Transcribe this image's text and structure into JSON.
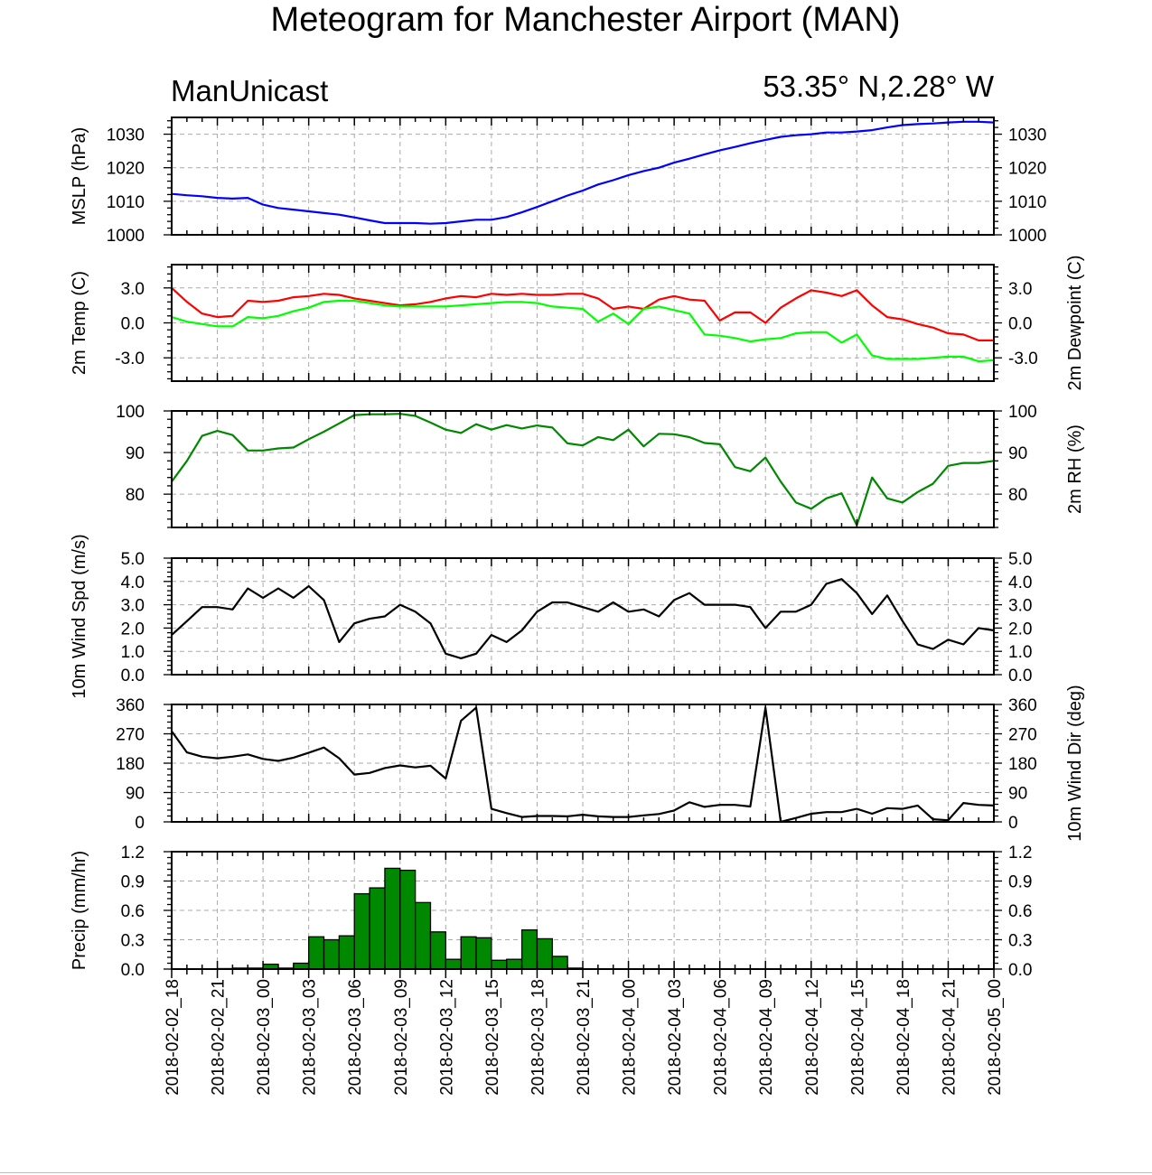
{
  "header": {
    "title": "Meteogram for Manchester Airport (MAN)",
    "left_label": "ManUnicast",
    "right_label": "53.35° N,2.28° W"
  },
  "colors": {
    "mslp": "#0000ff",
    "temp": "#ff0000",
    "dewpoint": "#00ff00",
    "rh": "#008800",
    "wind": "#000000",
    "precip_fill": "#008800",
    "grid": "#aaaaaa"
  },
  "chart_data": {
    "type": "line",
    "grid": true,
    "x_tick_labels": [
      "2018-02-02_18",
      "2018-02-02_21",
      "2018-02-03_00",
      "2018-02-03_03",
      "2018-02-03_06",
      "2018-02-03_09",
      "2018-02-03_12",
      "2018-02-03_15",
      "2018-02-03_18",
      "2018-02-03_21",
      "2018-02-04_00",
      "2018-02-04_03",
      "2018-02-04_06",
      "2018-02-04_09",
      "2018-02-04_12",
      "2018-02-04_15",
      "2018-02-04_18",
      "2018-02-04_21",
      "2018-02-05_00"
    ],
    "hours": [
      0,
      1,
      2,
      3,
      4,
      5,
      6,
      7,
      8,
      9,
      10,
      11,
      12,
      13,
      14,
      15,
      16,
      17,
      18,
      19,
      20,
      21,
      22,
      23,
      24,
      25,
      26,
      27,
      28,
      29,
      30,
      31,
      32,
      33,
      34,
      35,
      36,
      37,
      38,
      39,
      40,
      41,
      42,
      43,
      44,
      45,
      46,
      47,
      48,
      49,
      50,
      51,
      52,
      53,
      54
    ],
    "panels": [
      {
        "id": "mslp",
        "type": "line",
        "ylabel_left": "MSLP (hPa)",
        "ylabel_right": "",
        "ylim": [
          1000,
          1035
        ],
        "ticks": [
          1000,
          1010,
          1020,
          1030
        ],
        "tick_labels": [
          "1000",
          "1010",
          "1020",
          "1030"
        ],
        "series": [
          {
            "color_key": "mslp",
            "values": [
              1012.2,
              1011.8,
              1011.5,
              1011,
              1010.8,
              1011,
              1009,
              1008,
              1007.5,
              1007,
              1006.5,
              1006,
              1005.2,
              1004.3,
              1003.5,
              1003.5,
              1003.5,
              1003.3,
              1003.5,
              1004,
              1004.5,
              1004.5,
              1005.3,
              1006.7,
              1008.3,
              1010,
              1011.7,
              1013.2,
              1015,
              1016.3,
              1017.8,
              1019,
              1020,
              1021.5,
              1022.7,
              1024,
              1025.2,
              1026.2,
              1027.3,
              1028.3,
              1029.2,
              1029.7,
              1030,
              1030.5,
              1030.5,
              1030.8,
              1031.2,
              1032,
              1032.7,
              1033,
              1033.2,
              1033.5,
              1033.7,
              1033.7,
              1033.5
            ]
          }
        ]
      },
      {
        "id": "temp",
        "type": "line",
        "ylabel_left": "2m Temp (C)",
        "ylabel_right": "2m Dewpoint (C)",
        "ylim": [
          -5,
          5
        ],
        "ticks": [
          -3,
          0,
          3
        ],
        "tick_labels": [
          "-3.0",
          "0.0",
          "3.0"
        ],
        "series": [
          {
            "color_key": "temp",
            "values": [
              3.0,
              1.8,
              0.8,
              0.5,
              0.6,
              1.9,
              1.8,
              1.9,
              2.2,
              2.3,
              2.5,
              2.4,
              2.1,
              1.9,
              1.7,
              1.5,
              1.6,
              1.8,
              2.1,
              2.3,
              2.2,
              2.5,
              2.4,
              2.5,
              2.4,
              2.4,
              2.5,
              2.5,
              2.1,
              1.2,
              1.4,
              1.2,
              2.0,
              2.3,
              2.0,
              1.9,
              0.2,
              0.9,
              0.9,
              0.0,
              1.3,
              2.1,
              2.8,
              2.6,
              2.3,
              2.8,
              1.5,
              0.5,
              0.3,
              -0.1,
              -0.4,
              -0.9,
              -1.0,
              -1.5,
              -1.5
            ]
          },
          {
            "color_key": "dewpoint",
            "values": [
              0.5,
              0.1,
              -0.1,
              -0.3,
              -0.3,
              0.5,
              0.4,
              0.6,
              1.0,
              1.3,
              1.8,
              1.9,
              1.9,
              1.7,
              1.5,
              1.4,
              1.4,
              1.4,
              1.4,
              1.5,
              1.6,
              1.7,
              1.8,
              1.8,
              1.7,
              1.4,
              1.3,
              1.2,
              0.1,
              0.8,
              -0.1,
              1.2,
              1.4,
              1.1,
              0.8,
              -1.0,
              -1.1,
              -1.3,
              -1.6,
              -1.4,
              -1.3,
              -0.9,
              -0.8,
              -0.8,
              -1.7,
              -1.0,
              -2.8,
              -3.1,
              -3.1,
              -3.1,
              -3.0,
              -2.9,
              -2.9,
              -3.3,
              -3.2
            ]
          }
        ]
      },
      {
        "id": "rh",
        "type": "line",
        "ylabel_left": "",
        "ylabel_right": "2m RH (%)",
        "ylim": [
          72,
          100
        ],
        "ticks": [
          80,
          90,
          100
        ],
        "tick_labels": [
          "80",
          "90",
          "100"
        ],
        "series": [
          {
            "color_key": "rh",
            "values": [
              83,
              88,
              94,
              95.2,
              94.2,
              90.5,
              90.5,
              91,
              91.2,
              93.2,
              95,
              97,
              99,
              99.2,
              99.2,
              99.3,
              98.8,
              97.2,
              95.5,
              94.7,
              96.8,
              95.5,
              96.6,
              95.8,
              96.5,
              96,
              92.2,
              91.7,
              93.7,
              93,
              95.5,
              91.5,
              94.5,
              94.4,
              93.7,
              92.3,
              92,
              86.5,
              85.5,
              88.8,
              83,
              78,
              76.5,
              79,
              80.2,
              72.5,
              84,
              79,
              78,
              80.5,
              82.5,
              86.8,
              87.5,
              87.5,
              88
            ]
          }
        ]
      },
      {
        "id": "wind_speed",
        "type": "line",
        "ylabel_left": "10m Wind Spd (m/s)",
        "ylabel_right": "",
        "ylim": [
          0,
          5
        ],
        "ticks": [
          0,
          1,
          2,
          3,
          4,
          5
        ],
        "tick_labels": [
          "0.0",
          "1.0",
          "2.0",
          "3.0",
          "4.0",
          "5.0"
        ],
        "series": [
          {
            "color_key": "wind",
            "values": [
              1.7,
              2.3,
              2.9,
              2.9,
              2.8,
              3.7,
              3.3,
              3.7,
              3.3,
              3.8,
              3.2,
              1.4,
              2.2,
              2.4,
              2.5,
              3.0,
              2.7,
              2.2,
              0.9,
              0.7,
              0.9,
              1.7,
              1.4,
              1.9,
              2.7,
              3.1,
              3.1,
              2.9,
              2.7,
              3.1,
              2.7,
              2.8,
              2.5,
              3.2,
              3.5,
              3.0,
              3.0,
              3.0,
              2.9,
              2.0,
              2.7,
              2.7,
              3.0,
              3.9,
              4.1,
              3.5,
              2.6,
              3.4,
              2.3,
              1.3,
              1.1,
              1.5,
              1.3,
              2.0,
              1.9
            ]
          }
        ]
      },
      {
        "id": "wind_dir",
        "type": "line",
        "ylabel_left": "",
        "ylabel_right": "10m Wind Dir (deg)",
        "ylim": [
          0,
          360
        ],
        "ticks": [
          0,
          90,
          180,
          270,
          360
        ],
        "tick_labels": [
          "0",
          "90",
          "180",
          "270",
          "360"
        ],
        "series": [
          {
            "color_key": "wind",
            "values": [
              278,
              213,
              200,
              195,
              200,
              207,
              193,
              187,
              197,
              212,
              228,
              195,
              145,
              150,
              165,
              173,
              167,
              172,
              133,
              310,
              350,
              40,
              27,
              15,
              18,
              18,
              17,
              22,
              17,
              15,
              15,
              20,
              24,
              35,
              60,
              46,
              52,
              52,
              47,
              350,
              0,
              12,
              25,
              30,
              30,
              40,
              25,
              42,
              40,
              50,
              8,
              5,
              58,
              52,
              50
            ]
          }
        ]
      },
      {
        "id": "precip",
        "type": "bar",
        "ylabel_left": "Precip (mm/hr)",
        "ylabel_right": "",
        "ylim": [
          0,
          1.2
        ],
        "ticks": [
          0,
          0.3,
          0.6,
          0.9,
          1.2
        ],
        "tick_labels": [
          "0.0",
          "0.3",
          "0.6",
          "0.9",
          "1.2"
        ],
        "values": [
          0,
          0,
          0,
          0.005,
          0.01,
          0.01,
          0.05,
          0.01,
          0.06,
          0.33,
          0.3,
          0.34,
          0.77,
          0.83,
          1.03,
          1.01,
          0.68,
          0.38,
          0.1,
          0.33,
          0.32,
          0.09,
          0.1,
          0.4,
          0.31,
          0.13,
          0.01,
          0,
          0,
          0,
          0,
          0,
          0,
          0,
          0,
          0,
          0,
          0,
          0,
          0,
          0,
          0,
          0,
          0,
          0,
          0,
          0,
          0,
          0,
          0,
          0,
          0,
          0,
          0
        ]
      }
    ]
  }
}
